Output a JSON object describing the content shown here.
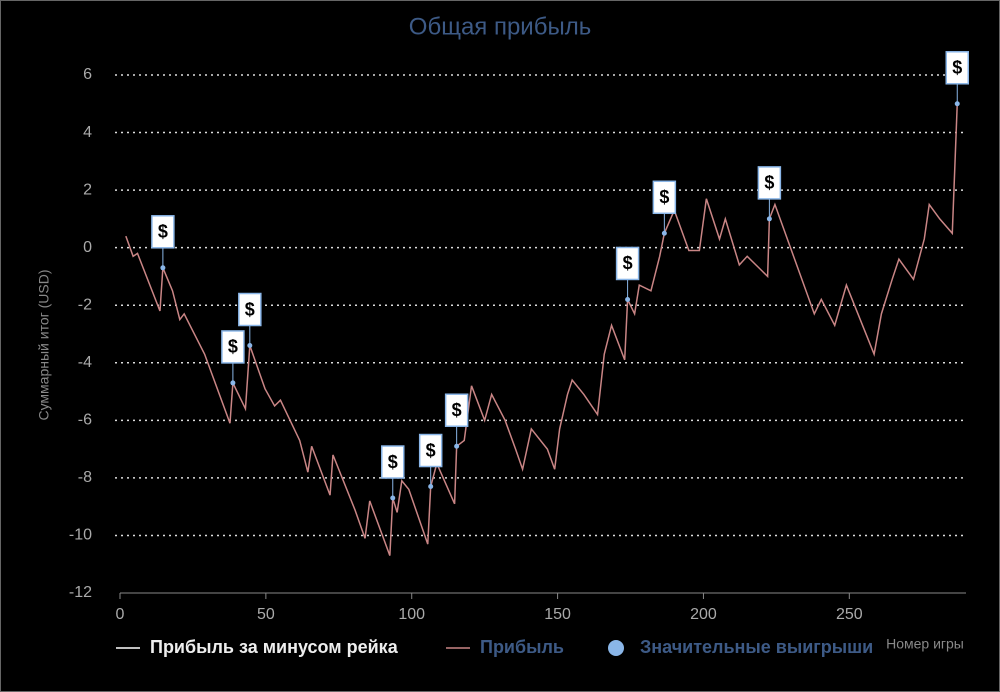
{
  "chart_data": {
    "type": "line",
    "title": "Общая прибыль",
    "xlabel": "Номер игры",
    "ylabel": "Суммарный итог (USD)",
    "xlim": [
      0,
      290
    ],
    "ylim": [
      -12,
      6
    ],
    "xticks": [
      0,
      50,
      100,
      150,
      200,
      250
    ],
    "yticks": [
      -12,
      -10,
      -8,
      -6,
      -4,
      -2,
      0,
      2,
      4,
      6
    ],
    "grid": "y",
    "legend": [
      {
        "name": "Прибыль за минусом рейка",
        "color": "#ffffff",
        "marker": "line"
      },
      {
        "name": "Прибыль",
        "color": "#c98585",
        "marker": "line"
      },
      {
        "name": "Значительные выигрыши",
        "color": "#8ab6e8",
        "marker": "dot"
      }
    ],
    "series": [
      {
        "color": "#c98585",
        "x": [
          2,
          4.5,
          6,
          13.7,
          14.7,
          18,
          20.5,
          22,
          29,
          37.7,
          38.7,
          43,
          44.5,
          49.7,
          53,
          55,
          61.6,
          64.4,
          65.7,
          72,
          73,
          80.5,
          84,
          85.6,
          92.5,
          93.5,
          95,
          96.6,
          99,
          105.5,
          106.5,
          108.6,
          114.7,
          115.4,
          118,
          120.5,
          125,
          127.4,
          132,
          135.6,
          138,
          141,
          146.5,
          149,
          150.7,
          153.4,
          155,
          159,
          163.7,
          166,
          168.5,
          173,
          174,
          176.4,
          178,
          182,
          185,
          186.6,
          190,
          195,
          198.6,
          201,
          205.5,
          207.5,
          212.3,
          215,
          222,
          222.6,
          224.5,
          238,
          240.4,
          245,
          249,
          258.5,
          261,
          264.7,
          267,
          272,
          275.7,
          277.4,
          281,
          285.3,
          287
        ],
        "values": [
          0.4,
          -0.3,
          -0.2,
          -2.2,
          -0.7,
          -1.5,
          -2.5,
          -2.3,
          -3.7,
          -6.1,
          -4.7,
          -5.6,
          -3.4,
          -4.9,
          -5.5,
          -5.3,
          -6.7,
          -7.8,
          -6.9,
          -8.6,
          -7.2,
          -9.1,
          -10.1,
          -8.8,
          -10.7,
          -8.7,
          -9.2,
          -8.1,
          -8.4,
          -10.3,
          -8.3,
          -7.5,
          -8.9,
          -6.9,
          -6.7,
          -4.8,
          -6.0,
          -5.1,
          -6.0,
          -7.0,
          -7.7,
          -6.3,
          -7.0,
          -7.7,
          -6.3,
          -5.1,
          -4.6,
          -5.1,
          -5.8,
          -3.7,
          -2.7,
          -3.9,
          -1.8,
          -2.3,
          -1.3,
          -1.5,
          -0.3,
          0.5,
          1.3,
          -0.1,
          -0.1,
          1.7,
          0.3,
          1.0,
          -0.6,
          -0.3,
          -1.0,
          1.0,
          1.5,
          -2.3,
          -1.8,
          -2.7,
          -1.3,
          -3.7,
          -2.3,
          -1.1,
          -0.4,
          -1.1,
          0.3,
          1.5,
          1.0,
          0.5,
          5.0
        ]
      }
    ],
    "highlights": {
      "color": "#8ab6e8",
      "marker_label": "$",
      "x": [
        14.7,
        38.7,
        44.5,
        93.5,
        106.5,
        115.4,
        174,
        186.6,
        222.6,
        287
      ],
      "values": [
        -0.7,
        -4.7,
        -3.4,
        -8.7,
        -8.3,
        -6.9,
        -1.8,
        0.5,
        1.0,
        5.0
      ]
    }
  }
}
